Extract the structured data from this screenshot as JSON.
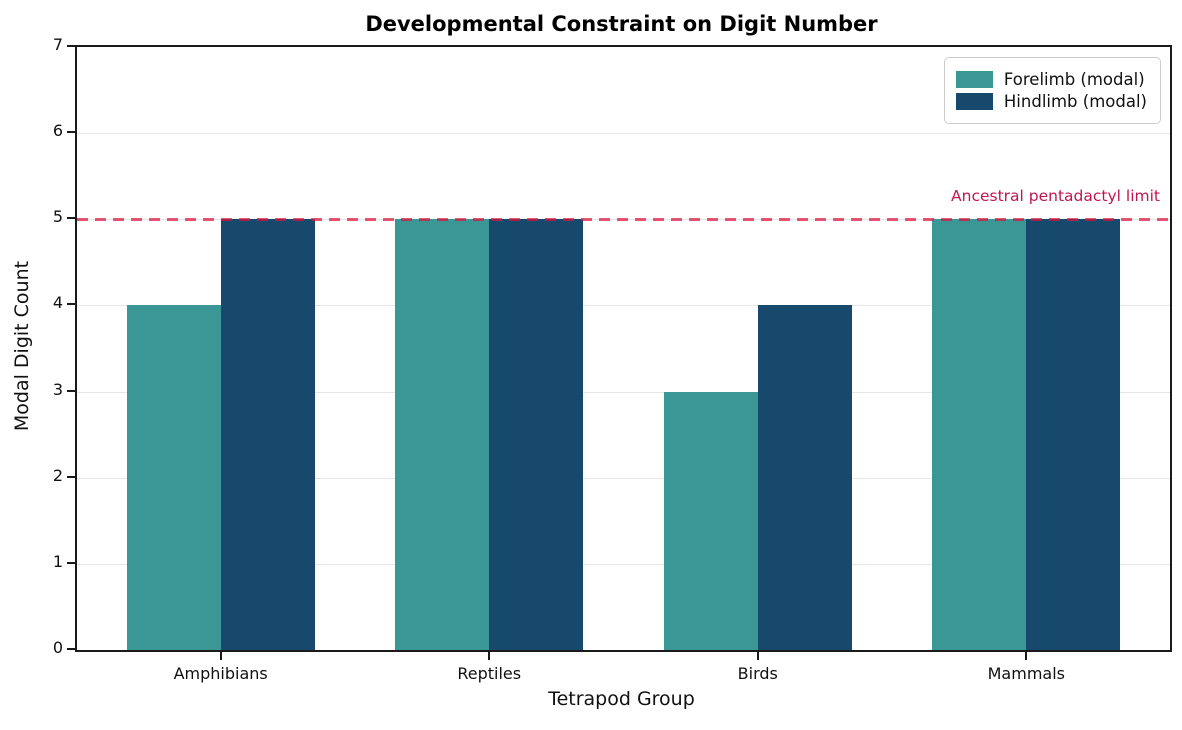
{
  "chart_data": {
    "type": "bar",
    "title": "Developmental Constraint on Digit Number",
    "xlabel": "Tetrapod Group",
    "ylabel": "Modal Digit Count",
    "categories": [
      "Amphibians",
      "Reptiles",
      "Birds",
      "Mammals"
    ],
    "series": [
      {
        "name": "Forelimb (modal)",
        "color": "#3a9795",
        "values": [
          4,
          5,
          3,
          5
        ]
      },
      {
        "name": "Hindlimb (modal)",
        "color": "#17496d",
        "values": [
          5,
          5,
          4,
          5
        ]
      }
    ],
    "ylim": [
      0,
      7
    ],
    "yticks": [
      0,
      1,
      2,
      3,
      4,
      5,
      6,
      7
    ],
    "grid": true,
    "legend_position": "upper right",
    "reference_line": {
      "value": 5,
      "label": "Ancestral pentadactyl limit",
      "label_color": "#c01650",
      "line_color": "rgba(220,20,60,0.72)",
      "style": "dashed"
    }
  }
}
